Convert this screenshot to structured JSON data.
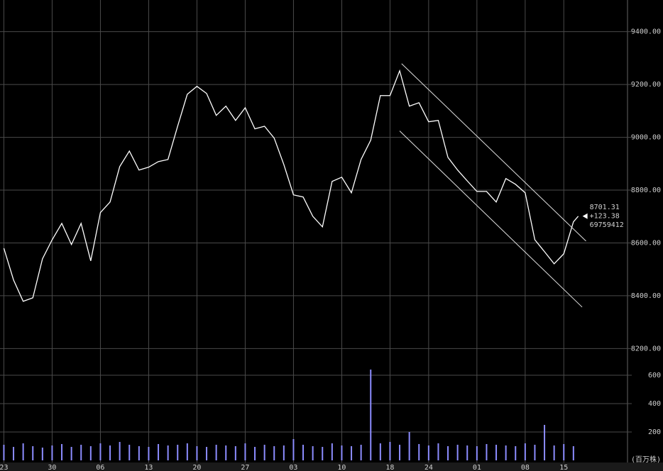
{
  "chart_data": [
    {
      "type": "line",
      "color": "#ffffff",
      "x": [
        0,
        1,
        2,
        3,
        4,
        5,
        6,
        7,
        8,
        9,
        10,
        11,
        12,
        13,
        14,
        15,
        16,
        17,
        18,
        19,
        20,
        21,
        22,
        23,
        24,
        25,
        26,
        27,
        28,
        29,
        30,
        31,
        32,
        33,
        34,
        35,
        36,
        37,
        38,
        39,
        40,
        41,
        42,
        43,
        44,
        45,
        46,
        47,
        48,
        49,
        50,
        51,
        52,
        53,
        54,
        55,
        56,
        57,
        58,
        59,
        59.5
      ],
      "values": [
        8580,
        8460,
        8379,
        8392,
        8540,
        8612,
        8674,
        8594,
        8674,
        8532,
        8715,
        8755,
        8889,
        8948,
        8876,
        8887,
        8908,
        8916,
        9042,
        9163,
        9193,
        9166,
        9083,
        9118,
        9064,
        9112,
        9032,
        9042,
        8997,
        8897,
        8782,
        8774,
        8701,
        8661,
        8833,
        8849,
        8790,
        8916,
        8989,
        9158,
        9158,
        9252,
        9118,
        9131,
        9059,
        9064,
        8924,
        8876,
        8835,
        8795,
        8795,
        8755,
        8844,
        8822,
        8790,
        8612,
        8567,
        8521,
        8559,
        8680,
        8701.31
      ],
      "trendlines": [
        {
          "x": [
            41.2,
            60.3
          ],
          "values": [
            9279,
            8607
          ]
        },
        {
          "x": [
            41,
            59.9
          ],
          "values": [
            9024,
            8357
          ]
        }
      ],
      "annotations": [
        "8701.31",
        "+123.38",
        "69759412"
      ],
      "xlim": [
        -0.4,
        64.6
      ],
      "ylim": [
        8150,
        9520
      ],
      "yticks": [
        {
          "value": 8200,
          "label": "8200.00"
        },
        {
          "value": 8400,
          "label": "8400.00"
        },
        {
          "value": 8600,
          "label": "8600.00"
        },
        {
          "value": 8800,
          "label": "8800.00"
        },
        {
          "value": 9000,
          "label": "9000.00"
        },
        {
          "value": 9200,
          "label": "9200.00"
        },
        {
          "value": 9400,
          "label": "9400.00"
        }
      ],
      "grid": true
    },
    {
      "type": "bar",
      "color": "#8c8cff",
      "y_label": "(百万株)",
      "x": [
        0,
        1,
        2,
        3,
        4,
        5,
        6,
        7,
        8,
        9,
        10,
        11,
        12,
        13,
        14,
        15,
        16,
        17,
        18,
        19,
        20,
        21,
        22,
        23,
        24,
        25,
        26,
        27,
        28,
        29,
        30,
        31,
        32,
        33,
        34,
        35,
        36,
        37,
        38,
        39,
        40,
        41,
        42,
        43,
        44,
        45,
        46,
        47,
        48,
        49,
        50,
        51,
        52,
        53,
        54,
        55,
        56,
        57,
        58,
        59
      ],
      "values": [
        110,
        95,
        120,
        100,
        90,
        105,
        115,
        95,
        110,
        100,
        120,
        105,
        130,
        110,
        100,
        95,
        115,
        105,
        110,
        120,
        100,
        95,
        110,
        105,
        100,
        120,
        95,
        110,
        100,
        105,
        150,
        110,
        100,
        95,
        120,
        105,
        100,
        110,
        640,
        120,
        130,
        110,
        200,
        115,
        105,
        120,
        100,
        110,
        105,
        100,
        115,
        110,
        105,
        100,
        120,
        110,
        250,
        105,
        115,
        100
      ],
      "xlim": [
        -0.4,
        64.6
      ],
      "ylim": [
        0,
        700
      ],
      "yticks": [
        200,
        400,
        600
      ],
      "xticks": [
        {
          "value": 0,
          "label": "23"
        },
        {
          "value": 5,
          "label": "30"
        },
        {
          "value": 10,
          "label": "06"
        },
        {
          "value": 15,
          "label": "13"
        },
        {
          "value": 20,
          "label": "20"
        },
        {
          "value": 25,
          "label": "27"
        },
        {
          "value": 30,
          "label": "03"
        },
        {
          "value": 35,
          "label": "10"
        },
        {
          "value": 40,
          "label": "18"
        },
        {
          "value": 44,
          "label": "24"
        },
        {
          "value": 49,
          "label": "01"
        },
        {
          "value": 54,
          "label": "08"
        },
        {
          "value": 58,
          "label": "15"
        }
      ],
      "grid": true
    }
  ]
}
